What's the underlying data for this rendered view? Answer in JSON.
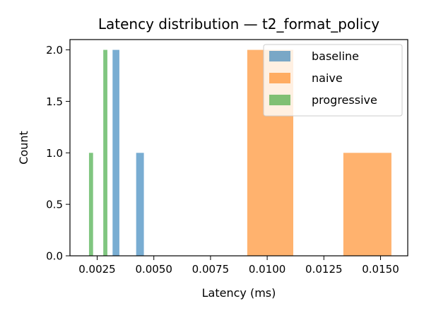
{
  "chart_data": {
    "type": "bar",
    "title": "Latency distribution — t2_format_policy",
    "xlabel": "Latency (ms)",
    "ylabel": "Count",
    "xlim": [
      0.0013,
      0.0162
    ],
    "ylim": [
      0,
      2.1
    ],
    "xticks": [
      0.0025,
      0.005,
      0.0075,
      0.01,
      0.0125,
      0.015
    ],
    "xtick_labels": [
      "0.0025",
      "0.0050",
      "0.0075",
      "0.0100",
      "0.0125",
      "0.0150"
    ],
    "yticks": [
      0.0,
      0.5,
      1.0,
      1.5,
      2.0
    ],
    "ytick_labels": [
      "0.0",
      "0.5",
      "1.0",
      "1.5",
      "2.0"
    ],
    "grid": false,
    "legend": "top-right",
    "series": [
      {
        "name": "baseline",
        "color": "#1f77b4",
        "bins": [
          {
            "x0": 0.00318,
            "x1": 0.00348,
            "count": 2
          },
          {
            "x0": 0.00422,
            "x1": 0.00456,
            "count": 1
          }
        ]
      },
      {
        "name": "naive",
        "color": "#ff7f0e",
        "bins": [
          {
            "x0": 0.00912,
            "x1": 0.01115,
            "count": 2
          },
          {
            "x0": 0.01336,
            "x1": 0.01548,
            "count": 1
          }
        ]
      },
      {
        "name": "progressive",
        "color": "#2ca02c",
        "bins": [
          {
            "x0": 0.00214,
            "x1": 0.00232,
            "count": 1
          },
          {
            "x0": 0.00277,
            "x1": 0.00295,
            "count": 2
          }
        ]
      }
    ]
  }
}
